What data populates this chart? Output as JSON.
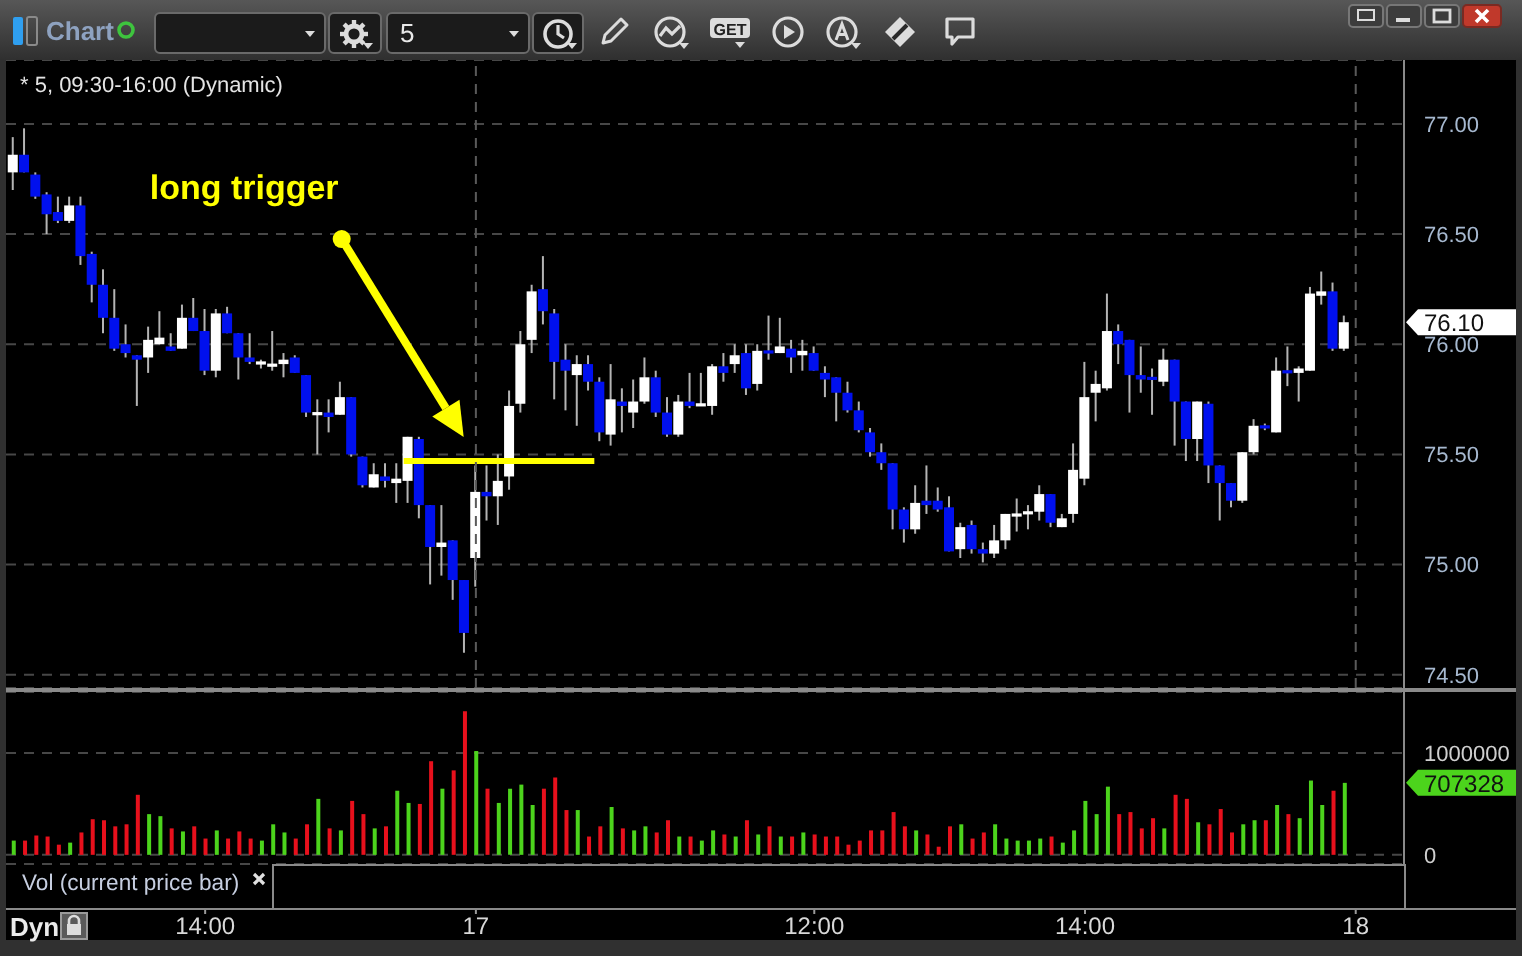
{
  "chart_data": [
    {
      "type": "candlestick",
      "title": "* 5, 09:30-16:00 (Dynamic)",
      "categories": [
        null,
        null,
        null,
        null,
        null,
        null,
        null,
        null,
        null,
        null,
        null,
        null,
        null,
        null,
        null,
        null,
        null,
        null,
        null,
        null,
        null,
        null,
        null,
        null,
        null,
        null,
        null,
        null,
        null,
        null,
        null,
        null,
        null,
        null,
        null,
        null,
        null,
        null,
        null,
        null,
        null,
        null,
        null,
        null,
        null,
        null,
        null,
        null,
        null,
        null,
        null,
        null,
        null,
        null,
        null,
        null,
        null,
        null,
        null,
        null,
        null,
        null,
        null,
        null,
        null,
        null,
        null,
        null,
        null,
        null,
        null,
        null,
        null,
        null,
        null,
        null,
        null,
        null,
        null,
        null,
        null,
        null,
        null,
        null,
        null,
        null,
        null,
        null,
        null,
        null,
        null,
        null,
        null,
        null,
        null,
        null,
        null,
        null,
        null,
        null,
        null,
        null,
        null,
        null,
        null,
        null,
        null,
        null,
        null,
        null,
        null,
        null,
        null,
        null,
        null,
        null,
        null,
        null,
        null,
        null
      ],
      "ohlc": [
        [
          76.78,
          76.94,
          76.7,
          76.86
        ],
        [
          76.86,
          76.98,
          76.78,
          76.78
        ],
        [
          76.77,
          76.78,
          76.66,
          76.67
        ],
        [
          76.68,
          76.69,
          76.5,
          76.59
        ],
        [
          76.6,
          76.67,
          76.55,
          76.56
        ],
        [
          76.56,
          76.67,
          76.55,
          76.63
        ],
        [
          76.63,
          76.67,
          76.36,
          76.4
        ],
        [
          76.41,
          76.42,
          76.19,
          76.27
        ],
        [
          76.27,
          76.34,
          76.05,
          76.12
        ],
        [
          76.12,
          76.25,
          75.97,
          75.98
        ],
        [
          76.0,
          76.09,
          75.94,
          75.96
        ],
        [
          75.95,
          75.95,
          75.72,
          75.93
        ],
        [
          75.94,
          76.08,
          75.87,
          76.02
        ],
        [
          76.0,
          76.15,
          76.0,
          76.03
        ],
        [
          75.99,
          76.05,
          75.97,
          75.97
        ],
        [
          75.98,
          76.18,
          75.98,
          76.12
        ],
        [
          76.12,
          76.21,
          76.06,
          76.06
        ],
        [
          76.06,
          76.16,
          75.86,
          75.88
        ],
        [
          75.88,
          76.16,
          75.85,
          76.14
        ],
        [
          76.14,
          76.17,
          76.05,
          76.05
        ],
        [
          76.05,
          76.05,
          75.84,
          75.94
        ],
        [
          75.94,
          76.05,
          75.91,
          75.92
        ],
        [
          75.91,
          75.93,
          75.89,
          75.92
        ],
        [
          75.9,
          76.06,
          75.88,
          75.91
        ],
        [
          75.91,
          75.96,
          75.85,
          75.93
        ],
        [
          75.94,
          75.95,
          75.87,
          75.87
        ],
        [
          75.86,
          75.86,
          75.67,
          75.69
        ],
        [
          75.68,
          75.75,
          75.5,
          75.69
        ],
        [
          75.69,
          75.75,
          75.6,
          75.67
        ],
        [
          75.68,
          75.83,
          75.68,
          75.76
        ],
        [
          75.76,
          75.76,
          75.49,
          75.5
        ],
        [
          75.49,
          75.49,
          75.35,
          75.36
        ],
        [
          75.35,
          75.46,
          75.35,
          75.41
        ],
        [
          75.4,
          75.46,
          75.35,
          75.38
        ],
        [
          75.37,
          75.46,
          75.28,
          75.39
        ],
        [
          75.38,
          75.58,
          75.28,
          75.58
        ],
        [
          75.57,
          75.58,
          75.21,
          75.27
        ],
        [
          75.27,
          75.27,
          74.91,
          75.08
        ],
        [
          75.08,
          75.27,
          74.95,
          75.1
        ],
        [
          75.11,
          75.11,
          74.84,
          74.93
        ],
        [
          74.93,
          74.93,
          74.6,
          74.69
        ],
        [
          75.03,
          75.45,
          74.9,
          75.33
        ],
        [
          75.33,
          75.45,
          75.2,
          75.31
        ],
        [
          75.31,
          75.5,
          75.18,
          75.38
        ],
        [
          75.4,
          75.79,
          75.34,
          75.72
        ],
        [
          75.73,
          76.06,
          75.69,
          76.0
        ],
        [
          76.02,
          76.27,
          75.96,
          76.24
        ],
        [
          76.25,
          76.4,
          76.09,
          76.15
        ],
        [
          76.14,
          76.16,
          75.75,
          75.92
        ],
        [
          75.93,
          76.0,
          75.7,
          75.88
        ],
        [
          75.86,
          75.95,
          75.63,
          75.91
        ],
        [
          75.91,
          75.95,
          75.79,
          75.83
        ],
        [
          75.83,
          75.85,
          75.56,
          75.6
        ],
        [
          75.59,
          75.91,
          75.54,
          75.75
        ],
        [
          75.74,
          75.8,
          75.6,
          75.72
        ],
        [
          75.69,
          75.84,
          75.62,
          75.74
        ],
        [
          75.74,
          75.94,
          75.73,
          75.85
        ],
        [
          75.85,
          75.88,
          75.67,
          75.69
        ],
        [
          75.69,
          75.76,
          75.58,
          75.59
        ],
        [
          75.59,
          75.77,
          75.58,
          75.74
        ],
        [
          75.74,
          75.87,
          75.71,
          75.72
        ],
        [
          75.72,
          75.87,
          75.72,
          75.73
        ],
        [
          75.72,
          75.91,
          75.68,
          75.9
        ],
        [
          75.9,
          75.96,
          75.83,
          75.87
        ],
        [
          75.91,
          76.0,
          75.87,
          75.95
        ],
        [
          75.96,
          76.0,
          75.77,
          75.8
        ],
        [
          75.82,
          76.0,
          75.79,
          75.97
        ],
        [
          75.97,
          76.13,
          75.93,
          75.96
        ],
        [
          75.96,
          76.12,
          75.96,
          75.99
        ],
        [
          75.98,
          76.02,
          75.87,
          75.94
        ],
        [
          75.95,
          76.02,
          75.88,
          75.97
        ],
        [
          75.96,
          75.99,
          75.88,
          75.88
        ],
        [
          75.87,
          75.9,
          75.76,
          75.84
        ],
        [
          75.85,
          75.85,
          75.65,
          75.78
        ],
        [
          75.78,
          75.83,
          75.69,
          75.7
        ],
        [
          75.7,
          75.74,
          75.6,
          75.61
        ],
        [
          75.6,
          75.62,
          75.49,
          75.51
        ],
        [
          75.51,
          75.55,
          75.43,
          75.46
        ],
        [
          75.46,
          75.46,
          75.16,
          75.25
        ],
        [
          75.25,
          75.26,
          75.1,
          75.16
        ],
        [
          75.16,
          75.36,
          75.14,
          75.28
        ],
        [
          75.29,
          75.45,
          75.23,
          75.27
        ],
        [
          75.29,
          75.35,
          75.24,
          75.25
        ],
        [
          75.26,
          75.31,
          75.06,
          75.06
        ],
        [
          75.07,
          75.19,
          75.03,
          75.17
        ],
        [
          75.18,
          75.2,
          75.05,
          75.07
        ],
        [
          75.07,
          75.1,
          75.01,
          75.05
        ],
        [
          75.05,
          75.18,
          75.03,
          75.11
        ],
        [
          75.11,
          75.23,
          75.07,
          75.23
        ],
        [
          75.22,
          75.3,
          75.15,
          75.23
        ],
        [
          75.23,
          75.27,
          75.16,
          75.24
        ],
        [
          75.24,
          75.36,
          75.2,
          75.32
        ],
        [
          75.32,
          75.32,
          75.17,
          75.19
        ],
        [
          75.17,
          75.23,
          75.17,
          75.21
        ],
        [
          75.23,
          75.55,
          75.19,
          75.43
        ],
        [
          75.39,
          75.92,
          75.36,
          75.76
        ],
        [
          75.78,
          75.88,
          75.65,
          75.82
        ],
        [
          75.8,
          76.23,
          75.79,
          76.06
        ],
        [
          76.06,
          76.09,
          75.91,
          76.0
        ],
        [
          76.02,
          76.02,
          75.69,
          75.86
        ],
        [
          75.86,
          75.99,
          75.78,
          75.84
        ],
        [
          75.85,
          75.89,
          75.68,
          75.84
        ],
        [
          75.83,
          75.98,
          75.81,
          75.93
        ],
        [
          75.93,
          75.93,
          75.54,
          75.74
        ],
        [
          75.74,
          75.74,
          75.47,
          75.57
        ],
        [
          75.57,
          75.74,
          75.47,
          75.74
        ],
        [
          75.73,
          75.74,
          75.37,
          75.45
        ],
        [
          75.45,
          75.45,
          75.2,
          75.37
        ],
        [
          75.37,
          75.37,
          75.26,
          75.29
        ],
        [
          75.29,
          75.51,
          75.28,
          75.51
        ],
        [
          75.51,
          75.66,
          75.5,
          75.63
        ],
        [
          75.63,
          75.64,
          75.61,
          75.62
        ],
        [
          75.6,
          75.94,
          75.6,
          75.88
        ],
        [
          75.88,
          75.99,
          75.81,
          75.87
        ],
        [
          75.87,
          75.9,
          75.74,
          75.89
        ],
        [
          75.88,
          76.26,
          75.88,
          76.23
        ],
        [
          76.22,
          76.33,
          76.18,
          76.24
        ],
        [
          76.24,
          76.28,
          75.97,
          75.98
        ],
        [
          75.98,
          76.13,
          75.97,
          76.1
        ],
        null
      ],
      "colors": [
        "#ffffff",
        "#0010ee",
        "#0010ee",
        "#0010ee",
        "#0010ee",
        "#ffffff",
        "#0010ee",
        "#0010ee",
        "#0010ee",
        "#0010ee",
        "#0010ee",
        "#0010ee",
        "#ffffff",
        "#ffffff",
        "#0010ee",
        "#ffffff",
        "#0010ee",
        "#0010ee",
        "#ffffff",
        "#0010ee",
        "#0010ee",
        "#0010ee",
        "#ffffff",
        "#ffffff",
        "#ffffff",
        "#0010ee",
        "#0010ee",
        "#ffffff",
        "#0010ee",
        "#ffffff",
        "#0010ee",
        "#0010ee",
        "#ffffff",
        "#0010ee",
        "#ffffff",
        "#ffffff",
        "#0010ee",
        "#0010ee",
        "#ffffff",
        "#0010ee",
        "#0010ee",
        "#ffffff",
        "#0010ee",
        "#ffffff",
        "#ffffff",
        "#ffffff",
        "#ffffff",
        "#0010ee",
        "#0010ee",
        "#0010ee",
        "#ffffff",
        "#0010ee",
        "#0010ee",
        "#ffffff",
        "#0010ee",
        "#ffffff",
        "#ffffff",
        "#0010ee",
        "#0010ee",
        "#ffffff",
        "#0010ee",
        "#ffffff",
        "#ffffff",
        "#0010ee",
        "#ffffff",
        "#0010ee",
        "#ffffff",
        "#0010ee",
        "#ffffff",
        "#0010ee",
        "#ffffff",
        "#0010ee",
        "#0010ee",
        "#0010ee",
        "#0010ee",
        "#0010ee",
        "#0010ee",
        "#0010ee",
        "#0010ee",
        "#0010ee",
        "#ffffff",
        "#0010ee",
        "#0010ee",
        "#0010ee",
        "#ffffff",
        "#0010ee",
        "#0010ee",
        "#ffffff",
        "#ffffff",
        "#ffffff",
        "#ffffff",
        "#ffffff",
        "#0010ee",
        "#ffffff",
        "#ffffff",
        "#ffffff",
        "#ffffff",
        "#ffffff",
        "#0010ee",
        "#0010ee",
        "#0010ee",
        "#0010ee",
        "#ffffff",
        "#0010ee",
        "#0010ee",
        "#ffffff",
        "#0010ee",
        "#0010ee",
        "#0010ee",
        "#ffffff",
        "#ffffff",
        "#0010ee",
        "#ffffff",
        "#0010ee",
        "#ffffff",
        "#ffffff",
        "#ffffff",
        "#0010ee",
        "#ffffff",
        null
      ],
      "ylim": [
        74.44,
        77.29
      ],
      "yticks": [
        {
          "value": 74.5,
          "label": "74.50"
        },
        {
          "value": 75,
          "label": "75.00"
        },
        {
          "value": 75.5,
          "label": "75.50"
        },
        {
          "value": 76,
          "label": "76.00"
        },
        {
          "value": 76.5,
          "label": "76.50"
        },
        {
          "value": 77,
          "label": "77.00"
        }
      ],
      "grid": "y",
      "tick_labels": "y",
      "ref_lines": [
        {
          "axis": "y",
          "value": 75.47,
          "label": "long trigger",
          "color": "#ffff00"
        },
        {
          "axis": "x",
          "value": "17",
          "color": "#5a5a5a",
          "line_style": "dashed"
        },
        {
          "axis": "x",
          "value": "18",
          "color": "#5a5a5a",
          "line_style": "dashed"
        }
      ],
      "annotations": [
        "76.10",
        "Chart",
        "5",
        "GET"
      ]
    },
    {
      "type": "bar",
      "title": "Vol (current price bar)",
      "categories": [
        null,
        null,
        null,
        null,
        null,
        null,
        null,
        null,
        null,
        null,
        null,
        null,
        null,
        null,
        null,
        null,
        null,
        "14:00",
        null,
        null,
        null,
        null,
        null,
        null,
        null,
        null,
        null,
        null,
        null,
        null,
        null,
        null,
        null,
        null,
        null,
        null,
        null,
        null,
        null,
        null,
        null,
        "17",
        null,
        null,
        null,
        null,
        null,
        null,
        null,
        null,
        null,
        null,
        null,
        null,
        null,
        null,
        null,
        null,
        null,
        null,
        null,
        null,
        null,
        null,
        null,
        null,
        null,
        null,
        null,
        null,
        null,
        "12:00",
        null,
        null,
        null,
        null,
        null,
        null,
        null,
        null,
        null,
        null,
        null,
        null,
        null,
        null,
        null,
        null,
        null,
        null,
        null,
        null,
        null,
        null,
        null,
        "14:00",
        null,
        null,
        null,
        null,
        null,
        null,
        null,
        null,
        null,
        null,
        null,
        null,
        null,
        null,
        null,
        null,
        null,
        null,
        null,
        null,
        null,
        null,
        null,
        "18"
      ],
      "values": [
        140000,
        140000,
        190000,
        180000,
        100000,
        120000,
        220000,
        350000,
        340000,
        280000,
        300000,
        590000,
        400000,
        380000,
        260000,
        230000,
        280000,
        160000,
        240000,
        160000,
        230000,
        160000,
        140000,
        300000,
        220000,
        160000,
        300000,
        550000,
        260000,
        240000,
        530000,
        400000,
        260000,
        280000,
        630000,
        510000,
        500000,
        920000,
        650000,
        830000,
        1410000,
        1020000,
        650000,
        510000,
        650000,
        690000,
        490000,
        650000,
        760000,
        440000,
        440000,
        180000,
        280000,
        470000,
        260000,
        240000,
        280000,
        220000,
        340000,
        180000,
        180000,
        140000,
        240000,
        200000,
        180000,
        340000,
        200000,
        280000,
        180000,
        180000,
        220000,
        200000,
        180000,
        180000,
        100000,
        140000,
        240000,
        240000,
        420000,
        280000,
        240000,
        200000,
        80000,
        280000,
        300000,
        160000,
        220000,
        300000,
        160000,
        140000,
        140000,
        160000,
        180000,
        120000,
        240000,
        530000,
        400000,
        670000,
        400000,
        420000,
        260000,
        360000,
        260000,
        590000,
        550000,
        320000,
        300000,
        450000,
        220000,
        300000,
        340000,
        340000,
        490000,
        400000,
        360000,
        730000,
        490000,
        630000,
        707328,
        null
      ],
      "colors": [
        "#4cd41c",
        "#e8101c",
        "#e8101c",
        "#e8101c",
        "#e8101c",
        "#4cd41c",
        "#e8101c",
        "#e8101c",
        "#e8101c",
        "#e8101c",
        "#e8101c",
        "#e8101c",
        "#4cd41c",
        "#4cd41c",
        "#e8101c",
        "#4cd41c",
        "#e8101c",
        "#e8101c",
        "#4cd41c",
        "#e8101c",
        "#e8101c",
        "#e8101c",
        "#4cd41c",
        "#4cd41c",
        "#4cd41c",
        "#e8101c",
        "#e8101c",
        "#4cd41c",
        "#e8101c",
        "#4cd41c",
        "#e8101c",
        "#e8101c",
        "#4cd41c",
        "#e8101c",
        "#4cd41c",
        "#4cd41c",
        "#e8101c",
        "#e8101c",
        "#4cd41c",
        "#e8101c",
        "#e8101c",
        "#4cd41c",
        "#e8101c",
        "#4cd41c",
        "#4cd41c",
        "#4cd41c",
        "#4cd41c",
        "#e8101c",
        "#e8101c",
        "#e8101c",
        "#4cd41c",
        "#e8101c",
        "#e8101c",
        "#4cd41c",
        "#e8101c",
        "#4cd41c",
        "#4cd41c",
        "#e8101c",
        "#e8101c",
        "#4cd41c",
        "#e8101c",
        "#4cd41c",
        "#4cd41c",
        "#e8101c",
        "#4cd41c",
        "#e8101c",
        "#4cd41c",
        "#e8101c",
        "#4cd41c",
        "#e8101c",
        "#4cd41c",
        "#e8101c",
        "#e8101c",
        "#e8101c",
        "#e8101c",
        "#e8101c",
        "#e8101c",
        "#e8101c",
        "#e8101c",
        "#e8101c",
        "#4cd41c",
        "#e8101c",
        "#e8101c",
        "#e8101c",
        "#4cd41c",
        "#e8101c",
        "#e8101c",
        "#4cd41c",
        "#4cd41c",
        "#4cd41c",
        "#4cd41c",
        "#4cd41c",
        "#e8101c",
        "#4cd41c",
        "#4cd41c",
        "#4cd41c",
        "#4cd41c",
        "#4cd41c",
        "#e8101c",
        "#e8101c",
        "#e8101c",
        "#e8101c",
        "#4cd41c",
        "#e8101c",
        "#e8101c",
        "#4cd41c",
        "#e8101c",
        "#e8101c",
        "#e8101c",
        "#4cd41c",
        "#4cd41c",
        "#e8101c",
        "#4cd41c",
        "#e8101c",
        "#4cd41c",
        "#4cd41c",
        "#4cd41c",
        "#e8101c",
        "#4cd41c",
        null
      ],
      "ylim": [
        -90000,
        1600000
      ],
      "yticks": [
        0,
        1000000
      ],
      "grid": "y",
      "annotations": [
        "707328",
        "Dyn"
      ]
    }
  ]
}
